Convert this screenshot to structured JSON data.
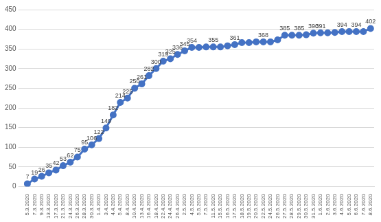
{
  "chart_data": {
    "type": "line",
    "categories": [
      "5.3.2020",
      "7.3.2020",
      "9.3.2020",
      "13.3.2020",
      "17.3.2020",
      "21.3.2020",
      "24.3.2020",
      "26.3.2020",
      "28.3.2020",
      "30.3.2020",
      "1.4.2020",
      "3.4.2020",
      "4.4.2020",
      "5.4.2020",
      "8.4.2020",
      "10.4.2020",
      "13.4.2020",
      "16.4.2020",
      "18.4.2020",
      "22.4.2020",
      "24.4.2020",
      "26.4.2020",
      "2.5.2020",
      "4.5.2020",
      "5.5.2020",
      "7.5.2020",
      "11.5.2020",
      "15.5.2020",
      "16.5.2020",
      "17.5.2020",
      "18.5.2020",
      "19.5.2020",
      "20.5.2020",
      "22.5.2020",
      "24.5.2020",
      "26.5.2020",
      "27.5.2020",
      "28.5.2020",
      "29.5.2020",
      "30.5.2020",
      "31.5.2020",
      "1.6.2020",
      "2.6.2020",
      "3.6.2020",
      "4.6.2020",
      "5.6.2020",
      "6.6.2020",
      "7.6.2020",
      "8.6.2020"
    ],
    "values": [
      7,
      19,
      26,
      35,
      42,
      53,
      62,
      75,
      95,
      106,
      122,
      149,
      182,
      214,
      225,
      250,
      261,
      282,
      300,
      319,
      325,
      336,
      345,
      354,
      354,
      355,
      355,
      355,
      358,
      361,
      366,
      366,
      368,
      368,
      368,
      373,
      385,
      385,
      385,
      386,
      390,
      391,
      391,
      392,
      394,
      394,
      394,
      394,
      402
    ],
    "value_labels": [
      "7",
      "19",
      "26",
      "35",
      "42",
      "53",
      "62",
      "75",
      "95",
      "106",
      "122",
      "149",
      "182",
      "214",
      "225",
      "250",
      "261",
      "282",
      "300",
      "319",
      "325",
      "336",
      "345",
      "354",
      null,
      null,
      "355",
      null,
      null,
      "361",
      null,
      null,
      null,
      "368",
      null,
      null,
      "385",
      null,
      "385",
      null,
      "390",
      "391",
      null,
      null,
      "394",
      null,
      "394",
      null,
      "402"
    ],
    "data_labels": true,
    "color": "#4472c4",
    "marker": "circle",
    "ylim": [
      0,
      450
    ],
    "yticks": [
      0,
      50,
      100,
      150,
      200,
      250,
      300,
      350,
      400,
      450
    ],
    "grid": true
  }
}
